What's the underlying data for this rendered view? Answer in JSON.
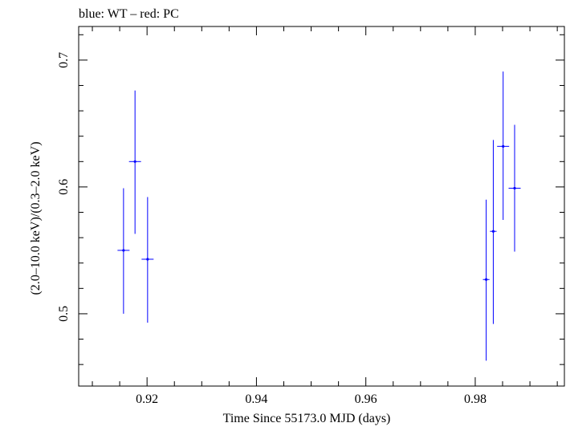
{
  "chart_data": {
    "type": "scatter",
    "title": "blue: WT – red: PC",
    "xlabel": "Time Since 55173.0 MJD (days)",
    "ylabel": "(2.0–10.0 keV)/(0.3–2.0 keV)",
    "xlim": [
      0.9075,
      0.9963
    ],
    "ylim": [
      0.443,
      0.7265
    ],
    "xticks": [
      0.92,
      0.94,
      0.96,
      0.98
    ],
    "xtick_labels": [
      "0.92",
      "0.94",
      "0.96",
      "0.98"
    ],
    "yticks": [
      0.5,
      0.6,
      0.7
    ],
    "ytick_labels": [
      "0.5",
      "0.6",
      "0.7"
    ],
    "grid": false,
    "series": [
      {
        "name": "WT",
        "color": "#0000ff",
        "points": [
          {
            "x": 0.9157,
            "y": 0.55,
            "xerr": 0.0011,
            "yerr_lo": 0.05,
            "yerr_hi": 0.049
          },
          {
            "x": 0.9178,
            "y": 0.62,
            "xerr": 0.0011,
            "yerr_lo": 0.057,
            "yerr_hi": 0.056
          },
          {
            "x": 0.9201,
            "y": 0.543,
            "xerr": 0.0011,
            "yerr_lo": 0.05,
            "yerr_hi": 0.049
          },
          {
            "x": 0.982,
            "y": 0.527,
            "xerr": 0.0006,
            "yerr_lo": 0.064,
            "yerr_hi": 0.063
          },
          {
            "x": 0.9833,
            "y": 0.565,
            "xerr": 0.0006,
            "yerr_lo": 0.073,
            "yerr_hi": 0.072
          },
          {
            "x": 0.9851,
            "y": 0.632,
            "xerr": 0.0011,
            "yerr_lo": 0.058,
            "yerr_hi": 0.059
          },
          {
            "x": 0.9872,
            "y": 0.599,
            "xerr": 0.0011,
            "yerr_lo": 0.05,
            "yerr_hi": 0.05
          }
        ]
      }
    ]
  }
}
